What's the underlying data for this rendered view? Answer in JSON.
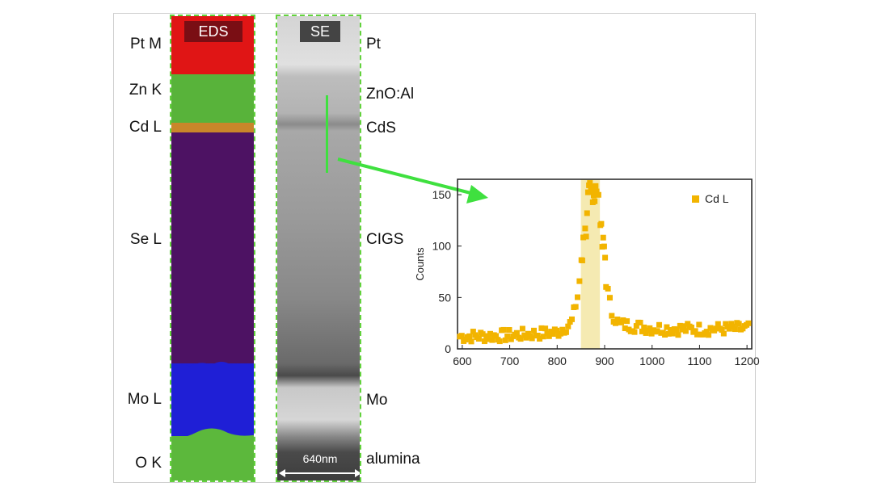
{
  "eds": {
    "tag": "EDS",
    "element_labels": [
      "Pt M",
      "Zn K",
      "Cd L",
      "Se L",
      "Mo L",
      "O K"
    ],
    "colors": {
      "pt": "#e01515",
      "zn": "#58b33a",
      "cd": "#c9862a",
      "se": "#4d1263",
      "mo": "#1f1fd6",
      "o": "#5cb83c"
    }
  },
  "se": {
    "tag": "SE",
    "layer_labels": [
      "Pt",
      "ZnO:Al",
      "CdS",
      "CIGS",
      "Mo",
      "alumina"
    ],
    "scale_bar": "640nm"
  },
  "accent_color": "#3fe03f",
  "chart_data": {
    "type": "scatter",
    "series": [
      {
        "name": "Cd L",
        "color": "#f2b400"
      }
    ],
    "ylabel": "Counts",
    "xlabel": "",
    "xlim": [
      590,
      1210
    ],
    "ylim": [
      0,
      165
    ],
    "xticks": [
      600,
      700,
      800,
      900,
      1000,
      1100,
      1200
    ],
    "yticks": [
      0,
      50,
      100,
      150
    ],
    "highlight_x_range": [
      850,
      890
    ],
    "profile": [
      [
        590,
        12
      ],
      [
        700,
        13
      ],
      [
        800,
        16
      ],
      [
        830,
        25
      ],
      [
        845,
        55
      ],
      [
        855,
        110
      ],
      [
        865,
        145
      ],
      [
        875,
        155
      ],
      [
        885,
        145
      ],
      [
        895,
        110
      ],
      [
        905,
        60
      ],
      [
        915,
        35
      ],
      [
        930,
        24
      ],
      [
        1000,
        20
      ],
      [
        1100,
        19
      ],
      [
        1210,
        20
      ]
    ]
  }
}
